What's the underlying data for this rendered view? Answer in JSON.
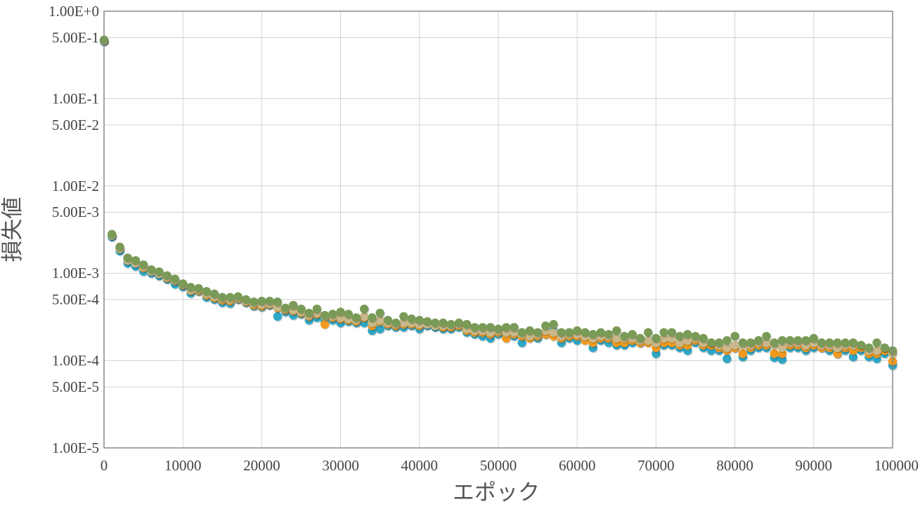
{
  "chart_data": {
    "type": "scatter",
    "title": "",
    "xlabel": "エポック",
    "ylabel": "損失値",
    "xlim": [
      0,
      100000
    ],
    "ylim": [
      1e-05,
      1
    ],
    "y_scale": "log",
    "grid": true,
    "x_ticks": [
      0,
      10000,
      20000,
      30000,
      40000,
      50000,
      60000,
      70000,
      80000,
      90000,
      100000
    ],
    "x_tick_labels": [
      "0",
      "10000",
      "20000",
      "30000",
      "40000",
      "50000",
      "60000",
      "70000",
      "80000",
      "90000",
      "100000"
    ],
    "y_ticks": [
      1,
      0.5,
      0.1,
      0.05,
      0.01,
      0.005,
      0.001,
      0.0005,
      0.0001,
      5e-05,
      1e-05
    ],
    "y_tick_labels": [
      "1.00E+0",
      "5.00E-1",
      "1.00E-1",
      "5.00E-2",
      "1.00E-2",
      "5.00E-3",
      "1.00E-3",
      "5.00E-4",
      "1.00E-4",
      "5.00E-5",
      "1.00E-5"
    ],
    "series": [
      {
        "color": "#2ea6c6",
        "x": [
          0,
          1000,
          2000,
          3000,
          4000,
          5000,
          6000,
          7000,
          8000,
          9000,
          10000,
          11000,
          12000,
          13000,
          14000,
          15000,
          16000,
          17000,
          18000,
          19000,
          20000,
          21000,
          22000,
          23000,
          24000,
          25000,
          26000,
          27000,
          28000,
          29000,
          30000,
          31000,
          32000,
          33000,
          34000,
          35000,
          36000,
          37000,
          38000,
          39000,
          40000,
          41000,
          42000,
          43000,
          44000,
          45000,
          46000,
          47000,
          48000,
          49000,
          50000,
          51000,
          52000,
          53000,
          54000,
          55000,
          56000,
          57000,
          58000,
          59000,
          60000,
          61000,
          62000,
          63000,
          64000,
          65000,
          66000,
          67000,
          68000,
          69000,
          70000,
          71000,
          72000,
          73000,
          74000,
          75000,
          76000,
          77000,
          78000,
          79000,
          80000,
          81000,
          82000,
          83000,
          84000,
          85000,
          86000,
          87000,
          88000,
          89000,
          90000,
          91000,
          92000,
          93000,
          94000,
          95000,
          96000,
          97000,
          98000,
          99000,
          100000
        ],
        "y": [
          0.45,
          0.0026,
          0.0018,
          0.0013,
          0.0012,
          0.00105,
          0.001,
          0.00093,
          0.00085,
          0.00075,
          0.0007,
          0.00059,
          0.00062,
          0.00053,
          0.0005,
          0.00046,
          0.00045,
          0.0005,
          0.00046,
          0.00042,
          0.00041,
          0.00043,
          0.00032,
          0.00036,
          0.00033,
          0.00034,
          0.00029,
          0.00031,
          0.00028,
          0.00029,
          0.00027,
          0.00028,
          0.00027,
          0.00027,
          0.00022,
          0.00023,
          0.00025,
          0.00024,
          0.00024,
          0.00025,
          0.00023,
          0.00025,
          0.00024,
          0.00023,
          0.00023,
          0.00024,
          0.00021,
          0.0002,
          0.00019,
          0.00018,
          0.0002,
          0.00019,
          0.00019,
          0.00016,
          0.00019,
          0.00018,
          0.0002,
          0.00022,
          0.00016,
          0.00018,
          0.00017,
          0.00018,
          0.00014,
          0.00017,
          0.00016,
          0.00015,
          0.00015,
          0.00016,
          0.00016,
          0.00017,
          0.00012,
          0.00015,
          0.00015,
          0.00014,
          0.00013,
          0.00016,
          0.00014,
          0.00013,
          0.00013,
          0.000105,
          0.00014,
          0.00011,
          0.00013,
          0.00014,
          0.00014,
          0.000108,
          0.000103,
          0.00014,
          0.00014,
          0.00013,
          0.00014,
          0.00014,
          0.00013,
          0.00012,
          0.00013,
          0.00011,
          0.00013,
          0.00011,
          0.000105,
          0.00012,
          8.8e-05
        ]
      },
      {
        "color": "#ef9a1f",
        "x": [
          0,
          1000,
          2000,
          3000,
          4000,
          5000,
          6000,
          7000,
          8000,
          9000,
          10000,
          11000,
          12000,
          13000,
          14000,
          15000,
          16000,
          17000,
          18000,
          19000,
          20000,
          21000,
          22000,
          23000,
          24000,
          25000,
          26000,
          27000,
          28000,
          29000,
          30000,
          31000,
          32000,
          33000,
          34000,
          35000,
          36000,
          37000,
          38000,
          39000,
          40000,
          41000,
          42000,
          43000,
          44000,
          45000,
          46000,
          47000,
          48000,
          49000,
          50000,
          51000,
          52000,
          53000,
          54000,
          55000,
          56000,
          57000,
          58000,
          59000,
          60000,
          61000,
          62000,
          63000,
          64000,
          65000,
          66000,
          67000,
          68000,
          69000,
          70000,
          71000,
          72000,
          73000,
          74000,
          75000,
          76000,
          77000,
          78000,
          79000,
          80000,
          81000,
          82000,
          83000,
          84000,
          85000,
          86000,
          87000,
          88000,
          89000,
          90000,
          91000,
          92000,
          93000,
          94000,
          95000,
          96000,
          97000,
          98000,
          99000,
          100000
        ],
        "y": [
          0.46,
          0.0027,
          0.0019,
          0.0014,
          0.0013,
          0.00115,
          0.00105,
          0.00098,
          0.00088,
          0.00082,
          0.00073,
          0.00063,
          0.00063,
          0.00056,
          0.00052,
          0.00049,
          0.00048,
          0.00051,
          0.00047,
          0.00043,
          0.00042,
          0.00044,
          0.0004,
          0.00038,
          0.00037,
          0.00035,
          0.00032,
          0.00034,
          0.00026,
          0.00031,
          0.0003,
          0.00029,
          0.00028,
          0.00031,
          0.00025,
          0.00028,
          0.00026,
          0.00025,
          0.00026,
          0.00026,
          0.00025,
          0.00026,
          0.00025,
          0.00024,
          0.00024,
          0.00025,
          0.00022,
          0.00021,
          0.00021,
          0.0002,
          0.00021,
          0.00018,
          0.0002,
          0.00019,
          0.00018,
          0.00019,
          0.0002,
          0.00019,
          0.00018,
          0.00019,
          0.00019,
          0.00017,
          0.00016,
          0.00018,
          0.00018,
          0.00016,
          0.00016,
          0.00017,
          0.00016,
          0.00016,
          0.00014,
          0.00016,
          0.00016,
          0.00015,
          0.00015,
          0.00017,
          0.00015,
          0.00015,
          0.00014,
          0.00013,
          0.00014,
          0.00012,
          0.00014,
          0.00015,
          0.00015,
          0.00012,
          0.00012,
          0.00015,
          0.00015,
          0.00014,
          0.00015,
          0.00014,
          0.00014,
          0.00012,
          0.00014,
          0.00013,
          0.00014,
          0.00012,
          0.00012,
          0.00013,
          9.8e-05
        ]
      },
      {
        "color": "#c9b88a",
        "x": [
          0,
          1000,
          2000,
          3000,
          4000,
          5000,
          6000,
          7000,
          8000,
          9000,
          10000,
          11000,
          12000,
          13000,
          14000,
          15000,
          16000,
          17000,
          18000,
          19000,
          20000,
          21000,
          22000,
          23000,
          24000,
          25000,
          26000,
          27000,
          28000,
          29000,
          30000,
          31000,
          32000,
          33000,
          34000,
          35000,
          36000,
          37000,
          38000,
          39000,
          40000,
          41000,
          42000,
          43000,
          44000,
          45000,
          46000,
          47000,
          48000,
          49000,
          50000,
          51000,
          52000,
          53000,
          54000,
          55000,
          56000,
          57000,
          58000,
          59000,
          60000,
          61000,
          62000,
          63000,
          64000,
          65000,
          66000,
          67000,
          68000,
          69000,
          70000,
          71000,
          72000,
          73000,
          74000,
          75000,
          76000,
          77000,
          78000,
          79000,
          80000,
          81000,
          82000,
          83000,
          84000,
          85000,
          86000,
          87000,
          88000,
          89000,
          90000,
          91000,
          92000,
          93000,
          94000,
          95000,
          96000,
          97000,
          98000,
          99000,
          100000
        ],
        "y": [
          0.46,
          0.0027,
          0.0019,
          0.0014,
          0.0013,
          0.00118,
          0.00105,
          0.00098,
          0.0009,
          0.00083,
          0.00074,
          0.00064,
          0.00065,
          0.00058,
          0.00054,
          0.00051,
          0.0005,
          0.00052,
          0.00048,
          0.00045,
          0.00044,
          0.00045,
          0.00041,
          0.00039,
          0.00038,
          0.00036,
          0.00033,
          0.00035,
          0.00032,
          0.00032,
          0.00031,
          0.0003,
          0.00029,
          0.00032,
          0.00027,
          0.00029,
          0.00027,
          0.00026,
          0.00027,
          0.00027,
          0.00026,
          0.00026,
          0.00025,
          0.00025,
          0.00025,
          0.00026,
          0.00023,
          0.00022,
          0.00022,
          0.00021,
          0.00022,
          0.00021,
          0.00021,
          0.0002,
          0.00019,
          0.0002,
          0.00022,
          0.00021,
          0.00019,
          0.0002,
          0.0002,
          0.00019,
          0.00018,
          0.00019,
          0.00019,
          0.00018,
          0.00018,
          0.00018,
          0.00017,
          0.00017,
          0.00016,
          0.00018,
          0.00018,
          0.00016,
          0.00017,
          0.00018,
          0.00016,
          0.00016,
          0.00015,
          0.00014,
          0.00015,
          0.00015,
          0.00015,
          0.00016,
          0.00016,
          0.00015,
          0.00014,
          0.00016,
          0.00016,
          0.00015,
          0.00016,
          0.00015,
          0.00015,
          0.00014,
          0.00015,
          0.00015,
          0.00015,
          0.00013,
          0.00013,
          0.00014,
          0.00012
        ]
      },
      {
        "color": "#7a9a57",
        "x": [
          0,
          1000,
          2000,
          3000,
          4000,
          5000,
          6000,
          7000,
          8000,
          9000,
          10000,
          11000,
          12000,
          13000,
          14000,
          15000,
          16000,
          17000,
          18000,
          19000,
          20000,
          21000,
          22000,
          23000,
          24000,
          25000,
          26000,
          27000,
          28000,
          29000,
          30000,
          31000,
          32000,
          33000,
          34000,
          35000,
          36000,
          37000,
          38000,
          39000,
          40000,
          41000,
          42000,
          43000,
          44000,
          45000,
          46000,
          47000,
          48000,
          49000,
          50000,
          51000,
          52000,
          53000,
          54000,
          55000,
          56000,
          57000,
          58000,
          59000,
          60000,
          61000,
          62000,
          63000,
          64000,
          65000,
          66000,
          67000,
          68000,
          69000,
          70000,
          71000,
          72000,
          73000,
          74000,
          75000,
          76000,
          77000,
          78000,
          79000,
          80000,
          81000,
          82000,
          83000,
          84000,
          85000,
          86000,
          87000,
          88000,
          89000,
          90000,
          91000,
          92000,
          93000,
          94000,
          95000,
          96000,
          97000,
          98000,
          99000,
          100000
        ],
        "y": [
          0.47,
          0.0028,
          0.002,
          0.0015,
          0.0014,
          0.00125,
          0.0011,
          0.00104,
          0.00094,
          0.00086,
          0.00076,
          0.00069,
          0.00067,
          0.00062,
          0.00058,
          0.00053,
          0.00053,
          0.00054,
          0.0005,
          0.00047,
          0.00048,
          0.00048,
          0.00047,
          0.0004,
          0.00043,
          0.00039,
          0.00035,
          0.00039,
          0.00033,
          0.00034,
          0.00036,
          0.00034,
          0.00031,
          0.00039,
          0.00031,
          0.00035,
          0.00029,
          0.00027,
          0.00032,
          0.0003,
          0.00029,
          0.00028,
          0.00027,
          0.00027,
          0.00026,
          0.00027,
          0.00026,
          0.00024,
          0.00024,
          0.00024,
          0.00023,
          0.00024,
          0.00024,
          0.00021,
          0.00022,
          0.00021,
          0.00025,
          0.00026,
          0.00021,
          0.00021,
          0.00022,
          0.00021,
          0.0002,
          0.00021,
          0.0002,
          0.00022,
          0.00019,
          0.0002,
          0.00018,
          0.00021,
          0.00018,
          0.00021,
          0.00021,
          0.00019,
          0.0002,
          0.00019,
          0.00018,
          0.00016,
          0.00016,
          0.00017,
          0.00019,
          0.00016,
          0.00016,
          0.00017,
          0.00019,
          0.00016,
          0.00017,
          0.00017,
          0.00017,
          0.00017,
          0.00018,
          0.00016,
          0.00016,
          0.00016,
          0.00016,
          0.00016,
          0.00015,
          0.00014,
          0.00016,
          0.00014,
          0.00013
        ]
      }
    ]
  }
}
